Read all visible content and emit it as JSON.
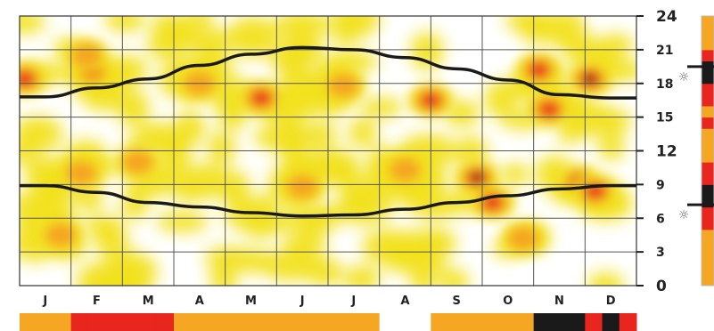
{
  "chart_data": {
    "type": "heatmap",
    "title": "",
    "xlabel": "",
    "ylabel": "",
    "x_categories": [
      "J",
      "F",
      "M",
      "A",
      "M",
      "J",
      "J",
      "A",
      "S",
      "O",
      "N",
      "D"
    ],
    "y_ticks": [
      0,
      3,
      6,
      9,
      12,
      15,
      18,
      21,
      24
    ],
    "ylim": [
      0,
      24
    ],
    "grid": true,
    "colors": {
      "low": "#f2e21c",
      "mid": "#f5a623",
      "high": "#e8251f",
      "peak": "#1a1a1a",
      "line": "#1a1a1a",
      "grid": "#555555"
    },
    "curves": {
      "sunset_hour_by_month": [
        16.8,
        17.6,
        18.4,
        19.6,
        20.6,
        21.2,
        21.0,
        20.3,
        19.3,
        18.3,
        17.0,
        16.7
      ],
      "sunrise_hour_by_month": [
        8.9,
        8.3,
        7.4,
        7.0,
        6.5,
        6.2,
        6.3,
        6.8,
        7.4,
        8.0,
        8.6,
        8.9
      ]
    },
    "hotspots": [
      {
        "month": 0.1,
        "hour": 18.4,
        "intensity": 0.8
      },
      {
        "month": 1.4,
        "hour": 19.2,
        "intensity": 0.9
      },
      {
        "month": 1.3,
        "hour": 20.5,
        "intensity": 0.4
      },
      {
        "month": 3.5,
        "hour": 18.0,
        "intensity": 0.5
      },
      {
        "month": 4.7,
        "hour": 16.7,
        "intensity": 0.8
      },
      {
        "month": 8.0,
        "hour": 16.5,
        "intensity": 0.9
      },
      {
        "month": 8.9,
        "hour": 9.6,
        "intensity": 1.0
      },
      {
        "month": 10.1,
        "hour": 19.2,
        "intensity": 0.9
      },
      {
        "month": 10.3,
        "hour": 15.7,
        "intensity": 0.85
      },
      {
        "month": 11.1,
        "hour": 18.4,
        "intensity": 1.0
      },
      {
        "month": 10.9,
        "hour": 9.2,
        "intensity": 1.0
      },
      {
        "month": 11.2,
        "hour": 8.4,
        "intensity": 0.9
      },
      {
        "month": 9.2,
        "hour": 7.4,
        "intensity": 0.7
      },
      {
        "month": 1.2,
        "hour": 10.0,
        "intensity": 0.5
      },
      {
        "month": 5.5,
        "hour": 8.8,
        "intensity": 0.55
      },
      {
        "month": 7.5,
        "hour": 10.3,
        "intensity": 0.5
      },
      {
        "month": 0.8,
        "hour": 4.5,
        "intensity": 0.35
      },
      {
        "month": 2.3,
        "hour": 11.0,
        "intensity": 0.4
      },
      {
        "month": 6.3,
        "hour": 17.8,
        "intensity": 0.35
      },
      {
        "month": 9.8,
        "hour": 4.2,
        "intensity": 0.45
      }
    ],
    "month_strip": [
      0.6,
      0.9,
      0.8,
      0.5,
      0.6,
      0.5,
      0.4,
      0.0,
      0.5,
      0.7,
      1.0,
      1.0
    ],
    "hour_strip": [
      0.5,
      0.5,
      0.4,
      0.6,
      0.6,
      0.8,
      0.7,
      0.9,
      1.0,
      0.8,
      0.7,
      0.6,
      0.6,
      0.6,
      0.7,
      0.6,
      0.7,
      0.8,
      0.9,
      1.0,
      0.8,
      0.6,
      0.5,
      0.5
    ]
  }
}
